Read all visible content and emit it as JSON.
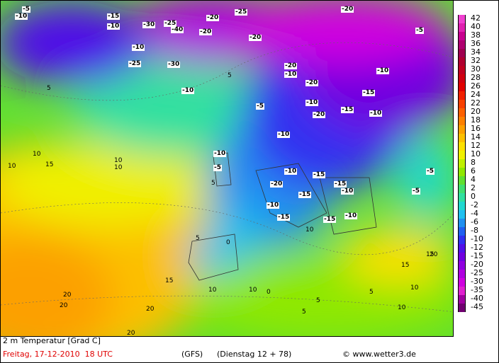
{
  "legend": [
    {
      "value": 42,
      "color": "#f040d0"
    },
    {
      "value": 40,
      "color": "#e020b0"
    },
    {
      "value": 38,
      "color": "#c80090"
    },
    {
      "value": 36,
      "color": "#b00070"
    },
    {
      "value": 34,
      "color": "#a00050"
    },
    {
      "value": 32,
      "color": "#b00030"
    },
    {
      "value": 30,
      "color": "#c00020"
    },
    {
      "value": 28,
      "color": "#d00010"
    },
    {
      "value": 26,
      "color": "#e00000"
    },
    {
      "value": 24,
      "color": "#f02000"
    },
    {
      "value": 22,
      "color": "#f84000"
    },
    {
      "value": 20,
      "color": "#fc6000"
    },
    {
      "value": 18,
      "color": "#fc8000"
    },
    {
      "value": 16,
      "color": "#fca000"
    },
    {
      "value": 14,
      "color": "#fcc000"
    },
    {
      "value": 12,
      "color": "#fce000"
    },
    {
      "value": 10,
      "color": "#f0f000"
    },
    {
      "value": 8,
      "color": "#c0f000"
    },
    {
      "value": 6,
      "color": "#90e800"
    },
    {
      "value": 4,
      "color": "#60e030"
    },
    {
      "value": 2,
      "color": "#40e070"
    },
    {
      "value": 0,
      "color": "#30e0a0"
    },
    {
      "value": -2,
      "color": "#20d8d0"
    },
    {
      "value": -4,
      "color": "#20c0f0"
    },
    {
      "value": -6,
      "color": "#2090f0"
    },
    {
      "value": -8,
      "color": "#2060f0"
    },
    {
      "value": -10,
      "color": "#3030f0"
    },
    {
      "value": -12,
      "color": "#5010e8"
    },
    {
      "value": -15,
      "color": "#7000e0"
    },
    {
      "value": -20,
      "color": "#9000e0"
    },
    {
      "value": -25,
      "color": "#b000e0"
    },
    {
      "value": -30,
      "color": "#d000e0"
    },
    {
      "value": -35,
      "color": "#e020d0"
    },
    {
      "value": -40,
      "color": "#a000a0"
    },
    {
      "value": -45,
      "color": "#700070"
    }
  ],
  "map": {
    "labels": [
      "-5",
      "-10",
      "-15",
      "-20",
      "-25",
      "-40",
      "-20",
      "-30",
      "-25",
      "-20",
      "-20",
      "-10",
      "-25",
      "-30",
      "-10",
      "-5",
      "-20",
      "-20",
      "-10",
      "-15",
      "-10",
      "-10",
      "-15",
      "-10",
      "-15",
      "-10",
      "-20",
      "-15",
      "-10",
      "-10",
      "-15",
      "-10",
      "-5",
      "-10",
      "-20",
      "-15",
      "-5",
      "-5",
      "-5",
      "-10",
      "-15",
      "-10"
    ],
    "plain": [
      "10",
      "15",
      "10",
      "10",
      "5",
      "5",
      "5",
      "0",
      "10",
      "15",
      "20",
      "20",
      "20",
      "20",
      "15",
      "10",
      "10",
      "5",
      "5",
      "10",
      "5",
      "0",
      "15",
      "20",
      "10",
      "10",
      "5"
    ]
  },
  "footer": {
    "title": "2 m Temperatur [Grad C]",
    "date": "Freitag, 17-12-2010  18 UTC",
    "model": "(GFS)",
    "run": "(Dienstag 12 + 78)",
    "credit": "© www.wetter3.de"
  }
}
